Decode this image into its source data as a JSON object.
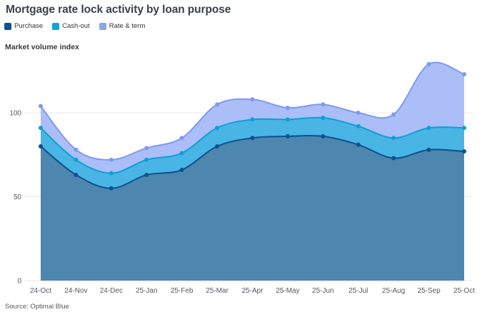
{
  "title": "Mortgage rate lock activity by loan purpose",
  "legend": {
    "items": [
      {
        "label": "Purchase",
        "color": "#0d5394"
      },
      {
        "label": "Cash-out",
        "color": "#16a2d7"
      },
      {
        "label": "Rate & term",
        "color": "#8aa7f2"
      }
    ]
  },
  "y_axis_title": "Market volume index",
  "source": "Source: Optimal Blue",
  "chart_data": {
    "type": "area",
    "stacked": true,
    "title": "Mortgage rate lock activity by loan purpose",
    "ylabel": "Market volume index",
    "xlabel": "",
    "ylim": [
      0,
      140
    ],
    "grid": "horizontal",
    "legend_position": "top-left",
    "categories": [
      "24-Oct",
      "24-Nov",
      "24-Dec",
      "25-Jan",
      "25-Feb",
      "25-Mar",
      "25-Apr",
      "25-May",
      "25-Jun",
      "25-Jul",
      "25-Aug",
      "25-Sep",
      "25-Oct"
    ],
    "yticks": [
      {
        "value": 0,
        "label": "0"
      },
      {
        "value": 50,
        "label": "50"
      },
      {
        "value": 100,
        "label": "100"
      }
    ],
    "series": [
      {
        "name": "Purchase",
        "line_color": "#0b518f",
        "fill_color": "#4d86ae",
        "cumulative": [
          80,
          63,
          55,
          63,
          66,
          80,
          85,
          86,
          86,
          81,
          73,
          78,
          77
        ]
      },
      {
        "name": "Cash-out",
        "line_color": "#0d9fd4",
        "fill_color": "#49b5e5",
        "cumulative": [
          91,
          72,
          64,
          72,
          76,
          91,
          96,
          96,
          97,
          92,
          85,
          91,
          91
        ]
      },
      {
        "name": "Rate & term",
        "line_color": "#7e9af0",
        "fill_color": "#abbef8",
        "cumulative": [
          104,
          78,
          72,
          79,
          85,
          105,
          108,
          103,
          105,
          100,
          99,
          129,
          123
        ]
      }
    ],
    "note": "Stacked area chart; 'cumulative' values are the plotted stacked line levels as read from the y-axis. A series' own component equals its cumulative value minus the cumulative value of the series below it."
  }
}
